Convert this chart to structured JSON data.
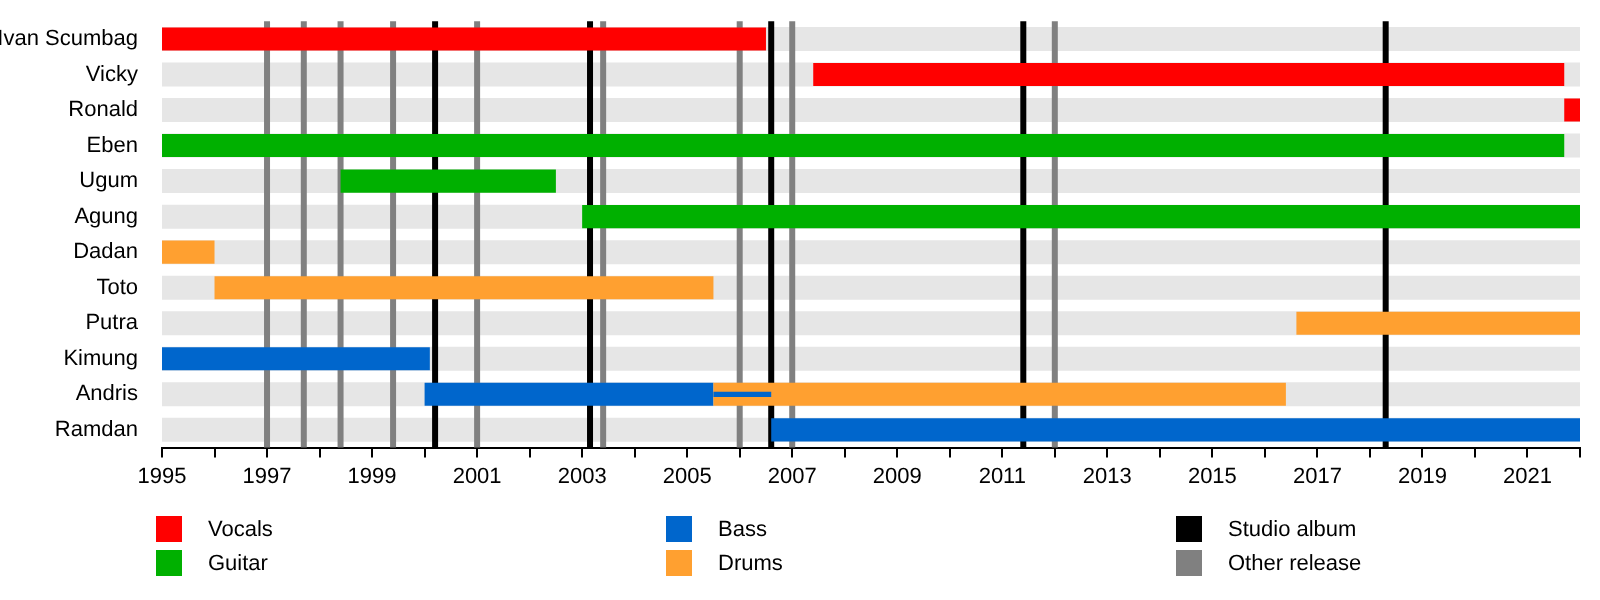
{
  "chart_data": {
    "type": "bar",
    "orientation": "horizontal",
    "categories": [
      "Ivan Scumbag",
      "Vicky",
      "Ronald",
      "Eben",
      "Ugum",
      "Agung",
      "Dadan",
      "Toto",
      "Putra",
      "Kimung",
      "Andris",
      "Ramdan"
    ],
    "series": [
      {
        "name": "Vocals",
        "color": "#ff0000",
        "base": [
          1995,
          2007.4,
          2021.7,
          null,
          null,
          null,
          null,
          null,
          null,
          null,
          null,
          null
        ],
        "values": [
          11.5,
          14.3,
          0.3,
          null,
          null,
          null,
          null,
          null,
          null,
          null,
          null,
          null
        ]
      },
      {
        "name": "Guitar",
        "color": "#00b000",
        "base": [
          null,
          null,
          null,
          1995,
          1998.4,
          2003.0,
          null,
          null,
          null,
          null,
          null,
          null
        ],
        "values": [
          null,
          null,
          null,
          26.7,
          4.1,
          19.0,
          null,
          null,
          null,
          null,
          null,
          null
        ]
      },
      {
        "name": "Bass",
        "color": "#0066cc",
        "base": [
          null,
          null,
          null,
          null,
          null,
          null,
          null,
          null,
          null,
          1995,
          2000.0,
          2006.6
        ],
        "values": [
          null,
          null,
          null,
          null,
          null,
          null,
          null,
          null,
          null,
          5.1,
          5.5,
          15.4
        ]
      },
      {
        "name": "Drums",
        "color": "#ffa030",
        "base": [
          null,
          null,
          null,
          null,
          null,
          null,
          1995,
          1996.0,
          2016.6,
          null,
          2005.5,
          null
        ],
        "values": [
          null,
          null,
          null,
          null,
          null,
          null,
          1.0,
          9.5,
          5.4,
          null,
          10.9,
          null
        ]
      },
      {
        "color": "#0066cc",
        "base": [
          null,
          null,
          null,
          null,
          null,
          null,
          null,
          null,
          null,
          null,
          2005.5,
          null
        ],
        "values": [
          null,
          null,
          null,
          null,
          null,
          null,
          null,
          null,
          null,
          null,
          1.1,
          null
        ]
      }
    ],
    "xlim": [
      1995,
      2022
    ],
    "xticks": [
      1995,
      {
        "value": 1996,
        "label": null
      },
      1997,
      {
        "value": 1998,
        "label": null
      },
      1999,
      {
        "value": 2000,
        "label": null
      },
      2001,
      {
        "value": 2002,
        "label": null
      },
      2003,
      {
        "value": 2004,
        "label": null
      },
      2005,
      {
        "value": 2006,
        "label": null
      },
      2007,
      {
        "value": 2008,
        "label": null
      },
      2009,
      {
        "value": 2010,
        "label": null
      },
      2011,
      {
        "value": 2012,
        "label": null
      },
      2013,
      {
        "value": 2014,
        "label": null
      },
      2015,
      {
        "value": 2016,
        "label": null
      },
      2017,
      {
        "value": 2018,
        "label": null
      },
      2019,
      {
        "value": 2020,
        "label": null
      },
      2021,
      {
        "value": 2022,
        "label": null
      }
    ],
    "ref_lines": [
      {
        "axis": "x",
        "value": 2000.2,
        "color": "#000000"
      },
      {
        "axis": "x",
        "value": 2003.15,
        "color": "#000000"
      },
      {
        "axis": "x",
        "value": 2006.6,
        "color": "#000000"
      },
      {
        "axis": "x",
        "value": 2011.4,
        "color": "#000000"
      },
      {
        "axis": "x",
        "value": 2018.3,
        "color": "#000000"
      },
      {
        "axis": "x",
        "value": 1997.0,
        "color": "#808080"
      },
      {
        "axis": "x",
        "value": 1997.7,
        "color": "#808080"
      },
      {
        "axis": "x",
        "value": 1998.4,
        "color": "#808080"
      },
      {
        "axis": "x",
        "value": 1999.4,
        "color": "#808080"
      },
      {
        "axis": "x",
        "value": 2001.0,
        "color": "#808080"
      },
      {
        "axis": "x",
        "value": 2003.4,
        "color": "#808080"
      },
      {
        "axis": "x",
        "value": 2006.0,
        "color": "#808080"
      },
      {
        "axis": "x",
        "value": 2007.0,
        "color": "#808080"
      },
      {
        "axis": "x",
        "value": 2012.0,
        "color": "#808080"
      }
    ],
    "annotations": [
      "Studio album",
      "Other release"
    ],
    "legend": "bottom"
  }
}
